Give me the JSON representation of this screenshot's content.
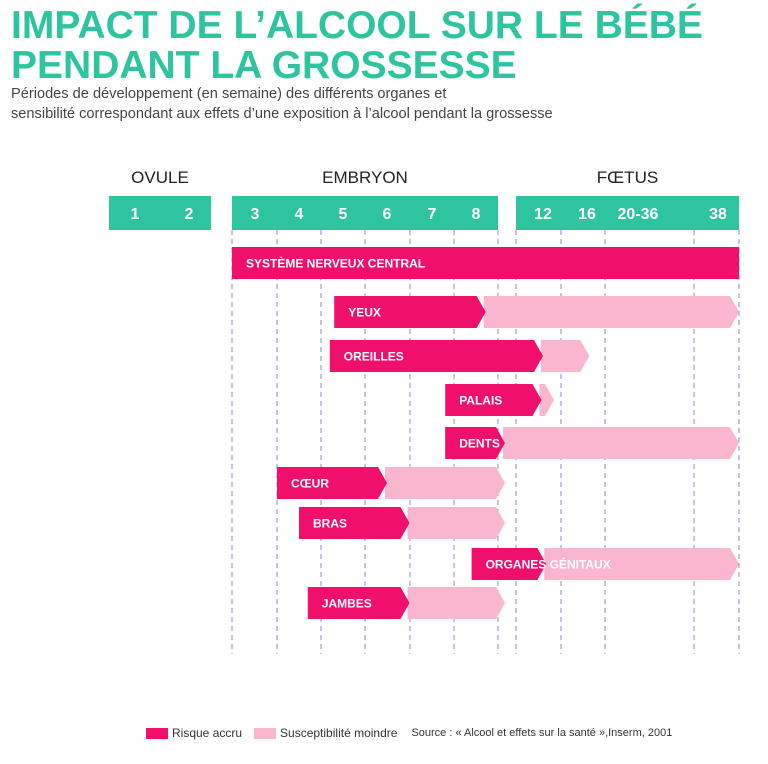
{
  "title_line1": "IMPACT DE L’ALCOOL SUR LE BÉBÉ",
  "title_line2": "PENDANT LA GROSSESSE",
  "subtitle_line1": "Périodes de développement (en semaine) des différents organes et",
  "subtitle_line2": "sensibilité correspondant aux effets d’une exposition à l’alcool pendant la grossesse",
  "colors": {
    "title": "#2ec4a0",
    "header": "#2ec4a0",
    "high": "#f0106c",
    "low": "#fbb6cf",
    "grid": "#8888cc"
  },
  "chart_data": {
    "type": "bar",
    "subtype": "gantt",
    "phases": [
      {
        "name": "OVULE",
        "weeks": [
          "1",
          "2"
        ]
      },
      {
        "name": "EMBRYON",
        "weeks": [
          "3",
          "4",
          "5",
          "6",
          "7",
          "8"
        ]
      },
      {
        "name": "FŒTUS",
        "weeks": [
          "12",
          "16",
          "20-36",
          "38"
        ]
      }
    ],
    "series_names": {
      "high": "Risque accru",
      "low": "Susceptibilité moindre"
    },
    "organs": [
      {
        "label": "SYSTÈME NERVEUX CENTRAL",
        "start": 3,
        "high_end": 38,
        "low_end": 38
      },
      {
        "label": "YEUX",
        "start": 4.8,
        "high_end": 8.5,
        "low_end": 38
      },
      {
        "label": "OREILLES",
        "start": 4.7,
        "high_end": 12,
        "low_end": 16.5
      },
      {
        "label": "PALAIS",
        "start": 7.3,
        "high_end": 11.9,
        "low_end": 13
      },
      {
        "label": "DENTS",
        "start": 7.3,
        "high_end": 9.5,
        "low_end": 38
      },
      {
        "label": "CŒUR",
        "start": 3.5,
        "high_end": 6,
        "low_end": 9.5
      },
      {
        "label": "BRAS",
        "start": 4,
        "high_end": 6.5,
        "low_end": 9.5
      },
      {
        "label": "ORGANES GÉNITAUX",
        "start": 7.9,
        "high_end": 12.3,
        "low_end": 38
      },
      {
        "label": "JAMBES",
        "start": 4.2,
        "high_end": 6.5,
        "low_end": 9.5
      }
    ]
  },
  "legend": {
    "high_label": "Risque accru",
    "low_label": "Susceptibilité moindre",
    "source": "Source : « Alcool et effets sur la santé »,Inserm, 2001"
  }
}
